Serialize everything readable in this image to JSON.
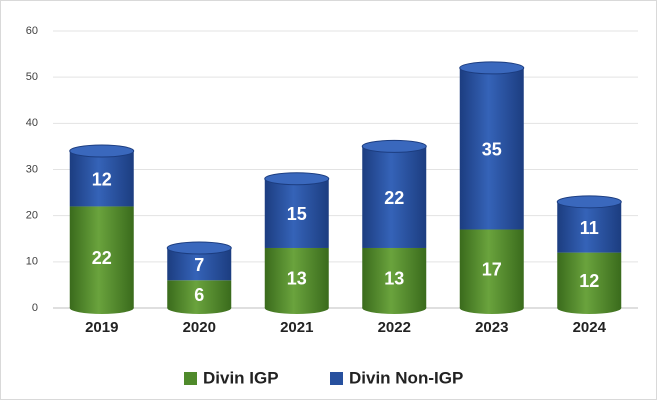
{
  "chart_data": {
    "type": "stacked_bar",
    "categories": [
      "2019",
      "2020",
      "2021",
      "2022",
      "2023",
      "2024"
    ],
    "series": [
      {
        "name": "Divin IGP",
        "color": "#4f8a2b",
        "values": [
          22,
          6,
          13,
          13,
          17,
          12
        ]
      },
      {
        "name": "Divin Non-IGP",
        "color": "#27509e",
        "values": [
          12,
          7,
          15,
          22,
          35,
          11
        ]
      }
    ],
    "ylim": [
      0,
      60
    ],
    "yticks": [
      0,
      10,
      20,
      30,
      40,
      50,
      60
    ],
    "grid": true,
    "legend": "bottom"
  }
}
